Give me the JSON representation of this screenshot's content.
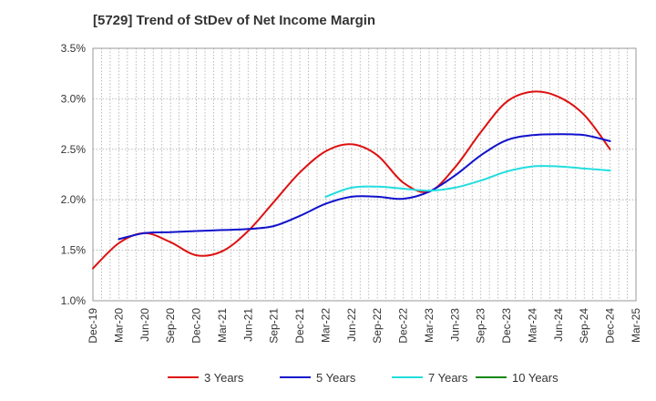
{
  "chart_data": {
    "type": "line",
    "title": "[5729]  Trend of StDev of Net Income Margin",
    "xlabel": "",
    "ylabel": "",
    "x": [
      "Dec-19",
      "Mar-20",
      "Jun-20",
      "Sep-20",
      "Dec-20",
      "Mar-21",
      "Jun-21",
      "Sep-21",
      "Dec-21",
      "Mar-22",
      "Jun-22",
      "Sep-22",
      "Dec-22",
      "Mar-23",
      "Jun-23",
      "Sep-23",
      "Dec-23",
      "Mar-24",
      "Jun-24",
      "Sep-24",
      "Dec-24",
      "Mar-25"
    ],
    "ylim": [
      1.0,
      3.5
    ],
    "yticks": [
      1.0,
      1.5,
      2.0,
      2.5,
      3.0,
      3.5
    ],
    "ytick_labels": [
      "1.0%",
      "1.5%",
      "2.0%",
      "2.5%",
      "3.0%",
      "3.5%"
    ],
    "grid": true,
    "legend_position": "bottom",
    "series": [
      {
        "name": "3 Years",
        "color": "#dd1111",
        "values": [
          1.32,
          1.57,
          1.67,
          1.58,
          1.45,
          1.49,
          1.69,
          1.98,
          2.27,
          2.48,
          2.55,
          2.44,
          2.17,
          2.08,
          2.32,
          2.67,
          2.97,
          3.07,
          3.02,
          2.84,
          2.5,
          null
        ]
      },
      {
        "name": "5 Years",
        "color": "#1111cc",
        "values": [
          null,
          1.61,
          1.67,
          1.68,
          1.69,
          1.7,
          1.71,
          1.74,
          1.84,
          1.96,
          2.03,
          2.03,
          2.01,
          2.08,
          2.24,
          2.44,
          2.59,
          2.64,
          2.65,
          2.64,
          2.58,
          null
        ]
      },
      {
        "name": "7 Years",
        "color": "#22dddd",
        "values": [
          null,
          null,
          null,
          null,
          null,
          null,
          null,
          null,
          null,
          2.03,
          2.12,
          2.13,
          2.11,
          2.09,
          2.12,
          2.19,
          2.28,
          2.33,
          2.33,
          2.31,
          2.29,
          null
        ]
      },
      {
        "name": "10 Years",
        "color": "#118811",
        "values": [
          null,
          null,
          null,
          null,
          null,
          null,
          null,
          null,
          null,
          null,
          null,
          null,
          null,
          null,
          null,
          null,
          null,
          null,
          null,
          null,
          null,
          null
        ]
      }
    ]
  }
}
